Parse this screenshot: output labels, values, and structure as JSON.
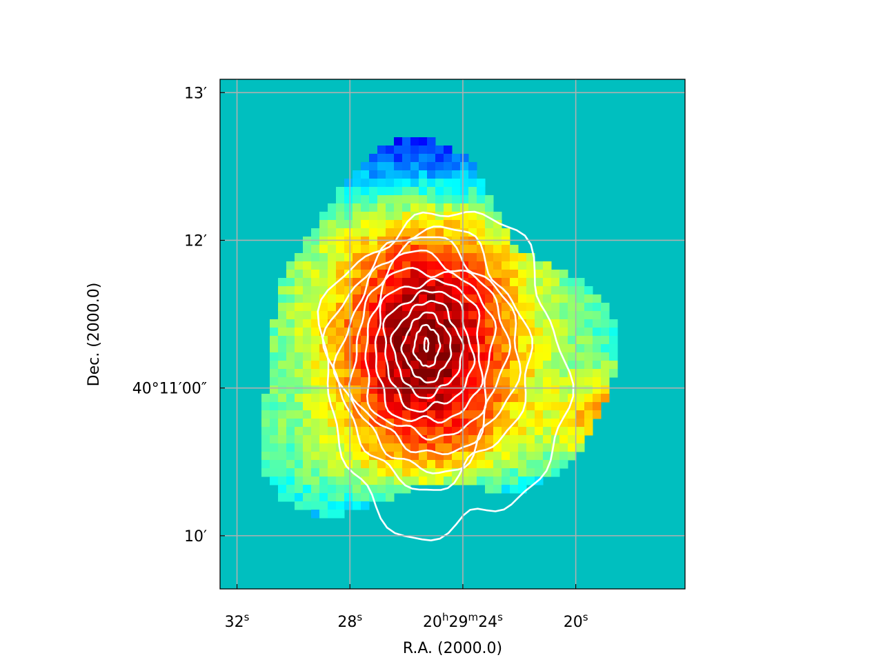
{
  "chart_data": {
    "type": "heatmap",
    "title": "",
    "xlabel": "R.A. (2000.0)",
    "ylabel": "Dec. (2000.0)",
    "x_ticks": [
      {
        "value_s": 32,
        "text": "32",
        "sup": "s"
      },
      {
        "value_s": 28,
        "text": "28",
        "sup": "s"
      },
      {
        "value_s": 24,
        "parts": [
          {
            "t": "20"
          },
          {
            "t": "h",
            "sup": true
          },
          {
            "t": "29"
          },
          {
            "t": "m",
            "sup": true
          },
          {
            "t": "24"
          },
          {
            "t": "s",
            "sup": true
          }
        ]
      },
      {
        "value_s": 20,
        "text": "20",
        "sup": "s"
      }
    ],
    "y_ticks": [
      {
        "value_arcmin": 13,
        "text": "13′"
      },
      {
        "value_arcmin": 12,
        "text": "12′"
      },
      {
        "value_arcmin": 11,
        "text": "40°11′00″"
      },
      {
        "value_arcmin": 10,
        "text": "10′"
      }
    ],
    "xlim_s": [
      32.6,
      16.13
    ],
    "ylim_arcmin": [
      9.64,
      13.09
    ],
    "grid": true,
    "colormap": "jet",
    "background_color": "#00bfbf",
    "contour_color": "#ffffff",
    "contour_count": 11,
    "peak_position": {
      "ra_s": 25.2,
      "dec_arcmin": 11.28
    },
    "contour_levels_relative": [
      0.17,
      0.25,
      0.33,
      0.41,
      0.49,
      0.57,
      0.65,
      0.72,
      0.8,
      0.87,
      0.94
    ]
  }
}
